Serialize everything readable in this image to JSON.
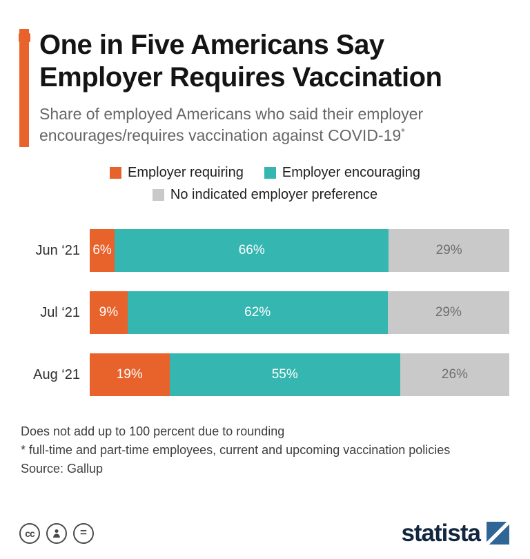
{
  "colors": {
    "accent_orange": "#e8622c",
    "teal": "#35b6b0",
    "light_gray": "#c9c9c9",
    "logo_navy": "#12263f",
    "logo_blue": "#2f6695",
    "icon_gray": "#4a4a4a"
  },
  "header": {
    "title_line1": "One in Five Americans Say",
    "title_line2": "Employer Requires Vaccination",
    "subtitle_line1": "Share of employed Americans who said their employer",
    "subtitle_line2": "encourages/requires vaccination against COVID-19",
    "footnote_marker": "*"
  },
  "chart_data": {
    "type": "bar",
    "orientation": "horizontal",
    "stacked": true,
    "title": "One in Five Americans Say Employer Requires Vaccination",
    "subtitle": "Share of employed Americans who said their employer encourages/requires vaccination against COVID-19*",
    "categories": [
      "Jun ‘21",
      "Jul ‘21",
      "Aug ‘21"
    ],
    "series": [
      {
        "name": "Employer requiring",
        "color": "#e8622c",
        "label_color": "#ffffff",
        "values": [
          6,
          9,
          19
        ]
      },
      {
        "name": "Employer encouraging",
        "color": "#35b6b0",
        "label_color": "#ffffff",
        "values": [
          66,
          62,
          55
        ]
      },
      {
        "name": "No indicated employer preference",
        "color": "#c9c9c9",
        "label_color": "#6e6e6e",
        "values": [
          29,
          29,
          26
        ]
      }
    ],
    "value_suffix": "%",
    "xlim": [
      0,
      100
    ],
    "grid": false,
    "legend_position": "top-center"
  },
  "footer": {
    "notes": [
      "Does not add up to 100 percent due to rounding",
      "* full-time and part-time employees, current and upcoming vaccination policies",
      "Source: Gallup"
    ]
  },
  "branding": {
    "logo_text": "statista",
    "license_icons": [
      "cc-icon",
      "attribution-person-icon",
      "equals-icon"
    ],
    "cc_glyph": "cc",
    "equals_glyph": "="
  }
}
